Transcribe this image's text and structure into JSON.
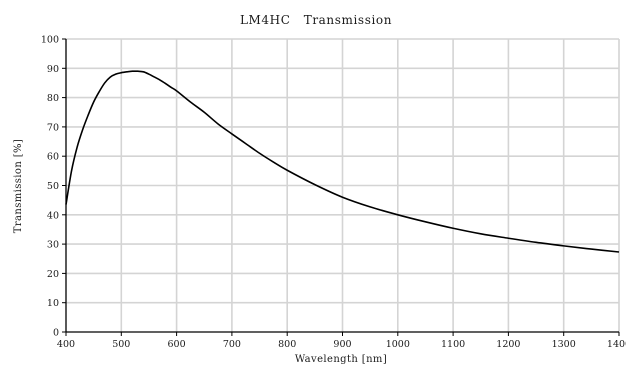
{
  "chart_data": {
    "type": "line",
    "title": "LM4HC   Transmission",
    "xlabel": "Wavelength [nm]",
    "ylabel": "Transmission [%]",
    "xlim": [
      400,
      1400
    ],
    "ylim": [
      0,
      100
    ],
    "grid": true,
    "xticks": [
      400,
      500,
      600,
      700,
      800,
      900,
      1000,
      1100,
      1200,
      1300,
      1400
    ],
    "yticks": [
      0,
      10,
      20,
      30,
      40,
      50,
      60,
      70,
      80,
      90,
      100
    ],
    "colors": {
      "line": "#000000",
      "grid": "#d4d4d4",
      "axis": "#000000"
    },
    "series": [
      {
        "x": [
          400,
          410,
          420,
          430,
          440,
          450,
          460,
          470,
          480,
          490,
          500,
          510,
          520,
          530,
          540,
          550,
          560,
          570,
          580,
          590,
          600,
          625,
          650,
          675,
          700,
          725,
          750,
          775,
          800,
          850,
          900,
          950,
          1000,
          1050,
          1100,
          1150,
          1200,
          1250,
          1300,
          1350,
          1400
        ],
        "y": [
          43.5,
          55,
          63,
          69,
          74,
          78.5,
          82,
          85,
          87,
          88,
          88.5,
          88.8,
          89,
          89,
          88.8,
          88,
          87,
          86,
          84.8,
          83.5,
          82.3,
          78.5,
          75,
          71,
          67.6,
          64.3,
          61,
          58,
          55.2,
          50.3,
          46,
          42.7,
          40,
          37.6,
          35.4,
          33.5,
          32,
          30.6,
          29.4,
          28.3,
          27.3
        ]
      }
    ]
  }
}
